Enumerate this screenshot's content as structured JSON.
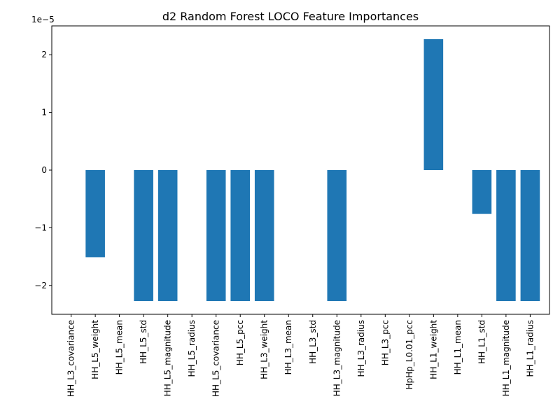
{
  "chart_data": {
    "type": "bar",
    "title": "d2 Random Forest LOCO Feature Importances",
    "xlabel": "",
    "ylabel": "",
    "scale_label": "1e−5",
    "categories": [
      "HH_L3_covariance",
      "HH_L5_weight",
      "HH_L5_mean",
      "HH_L5_std",
      "HH_L5_magnitude",
      "HH_L5_radius",
      "HH_L5_covariance",
      "HH_L5_pcc",
      "HH_L3_weight",
      "HH_L3_mean",
      "HH_L3_std",
      "HH_L3_magnitude",
      "HH_L3_radius",
      "HH_L3_pcc",
      "HpHp_L0.01_pcc",
      "HH_L1_weight",
      "HH_L1_mean",
      "HH_L1_std",
      "HH_L1_magnitude",
      "HH_L1_radius"
    ],
    "values": [
      0,
      -1.51,
      0,
      -2.27,
      -2.27,
      0,
      -2.27,
      -2.27,
      -2.27,
      0,
      0,
      -2.27,
      0,
      0,
      0,
      2.27,
      0,
      -0.76,
      -2.27,
      -2.27
    ],
    "ylim": [
      -2.5,
      2.5
    ],
    "yticks": [
      -2,
      -1,
      0,
      1,
      2
    ],
    "ytick_labels": [
      "−2",
      "−1",
      "0",
      "1",
      "2"
    ],
    "bar_color": "#1f77b4",
    "grid": false,
    "legend": "none"
  }
}
